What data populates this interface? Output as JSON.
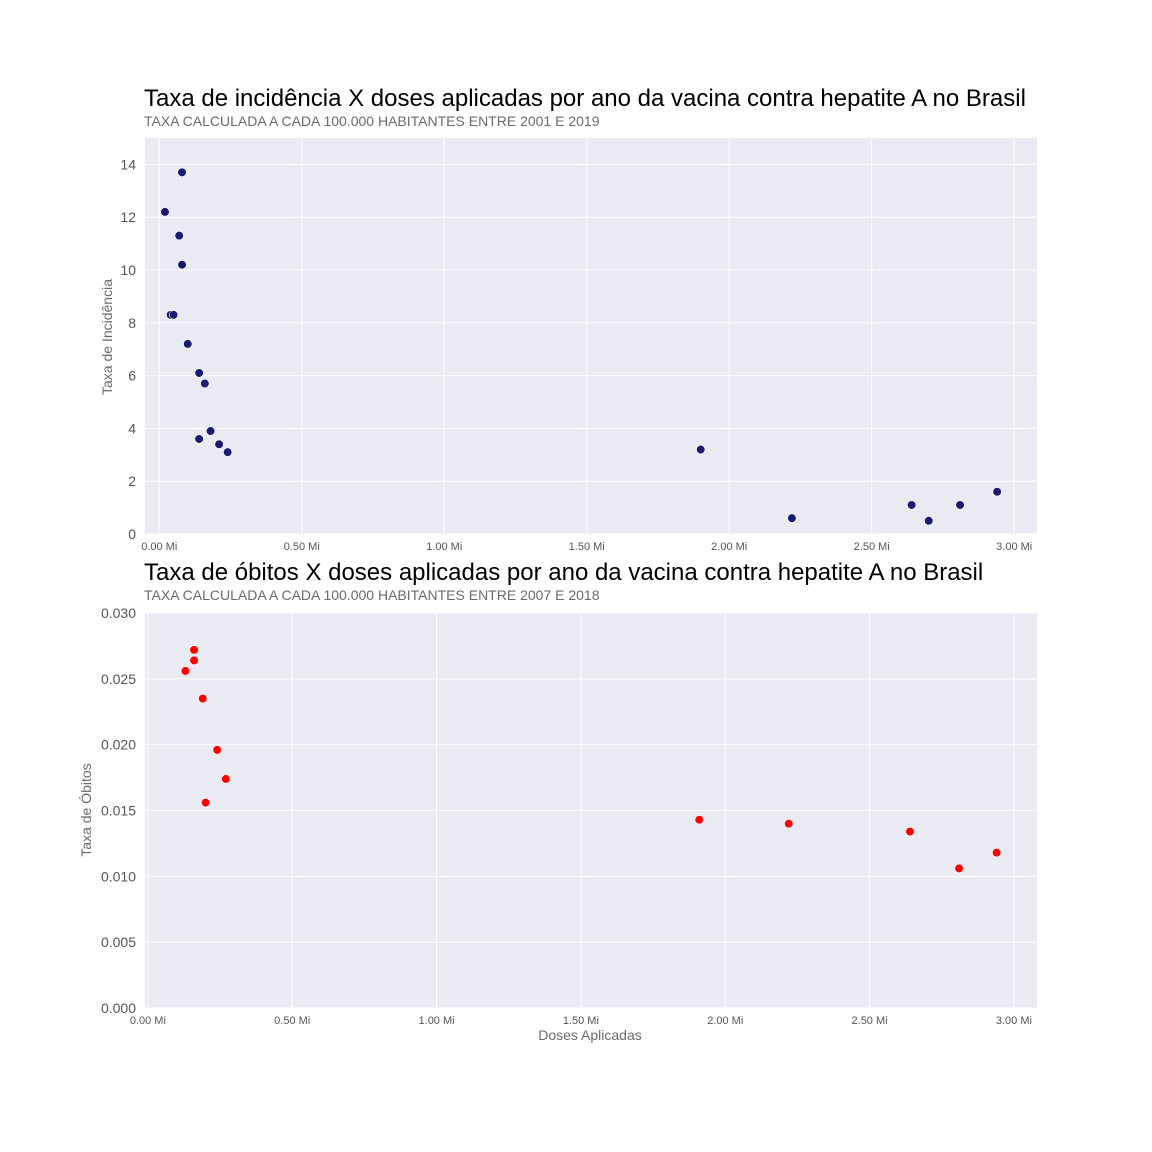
{
  "chart_data": [
    {
      "type": "scatter",
      "title": "Taxa de incidência X doses aplicadas por ano da vacina contra hepatite A no Brasil",
      "subtitle": "TAXA CALCULADA A CADA 100.000 HABITANTES ENTRE 2001 E 2019",
      "xlabel": "",
      "ylabel": "Taxa de Incidência",
      "xlim": [
        -0.05,
        3.08
      ],
      "ylim": [
        0,
        15
      ],
      "xticks": [
        0,
        0.5,
        1,
        1.5,
        2,
        2.5,
        3
      ],
      "xtick_labels": [
        "0.00 Mi",
        "0.50 Mi",
        "1.00 Mi",
        "1.50 Mi",
        "2.00 Mi",
        "2.50 Mi",
        "3.00 Mi"
      ],
      "yticks": [
        0,
        2,
        4,
        6,
        8,
        10,
        12,
        14
      ],
      "ytick_labels": [
        "0",
        "2",
        "4",
        "6",
        "8",
        "10",
        "12",
        "14"
      ],
      "grid": true,
      "color": "#191970",
      "points": [
        {
          "x": 0.08,
          "y": 13.7
        },
        {
          "x": 0.02,
          "y": 12.2
        },
        {
          "x": 0.07,
          "y": 11.3
        },
        {
          "x": 0.08,
          "y": 10.2
        },
        {
          "x": 0.04,
          "y": 8.3
        },
        {
          "x": 0.05,
          "y": 8.3
        },
        {
          "x": 0.1,
          "y": 7.2
        },
        {
          "x": 0.14,
          "y": 6.1
        },
        {
          "x": 0.16,
          "y": 5.7
        },
        {
          "x": 0.18,
          "y": 3.9
        },
        {
          "x": 0.14,
          "y": 3.6
        },
        {
          "x": 0.21,
          "y": 3.4
        },
        {
          "x": 0.24,
          "y": 3.1
        },
        {
          "x": 1.9,
          "y": 3.2
        },
        {
          "x": 2.22,
          "y": 0.6
        },
        {
          "x": 2.64,
          "y": 1.1
        },
        {
          "x": 2.7,
          "y": 0.5
        },
        {
          "x": 2.81,
          "y": 1.1
        },
        {
          "x": 2.94,
          "y": 1.6
        }
      ]
    },
    {
      "type": "scatter",
      "title": "Taxa de óbitos X doses aplicadas por ano da vacina contra hepatite A no Brasil",
      "subtitle": "TAXA CALCULADA A CADA 100.000 HABITANTES ENTRE 2007 E 2018",
      "xlabel": "Doses Aplicadas",
      "ylabel": "Taxa de Óbitos",
      "xlim": [
        -0.01,
        3.08
      ],
      "ylim": [
        0,
        0.03
      ],
      "xticks": [
        0,
        0.5,
        1,
        1.5,
        2,
        2.5,
        3
      ],
      "xtick_labels": [
        "0.00 Mi",
        "0.50 Mi",
        "1.00 Mi",
        "1.50 Mi",
        "2.00 Mi",
        "2.50 Mi",
        "3.00 Mi"
      ],
      "yticks": [
        0,
        0.005,
        0.01,
        0.015,
        0.02,
        0.025,
        0.03
      ],
      "ytick_labels": [
        "0.000",
        "0.005",
        "0.010",
        "0.015",
        "0.020",
        "0.025",
        "0.030"
      ],
      "grid": true,
      "color": "#ff0000",
      "points": [
        {
          "x": 0.16,
          "y": 0.0272
        },
        {
          "x": 0.16,
          "y": 0.0264
        },
        {
          "x": 0.13,
          "y": 0.0256
        },
        {
          "x": 0.19,
          "y": 0.0235
        },
        {
          "x": 0.24,
          "y": 0.0196
        },
        {
          "x": 0.27,
          "y": 0.0174
        },
        {
          "x": 0.2,
          "y": 0.0156
        },
        {
          "x": 1.91,
          "y": 0.0143
        },
        {
          "x": 2.22,
          "y": 0.014
        },
        {
          "x": 2.64,
          "y": 0.0134
        },
        {
          "x": 2.81,
          "y": 0.0106
        },
        {
          "x": 2.94,
          "y": 0.0118
        }
      ]
    }
  ]
}
